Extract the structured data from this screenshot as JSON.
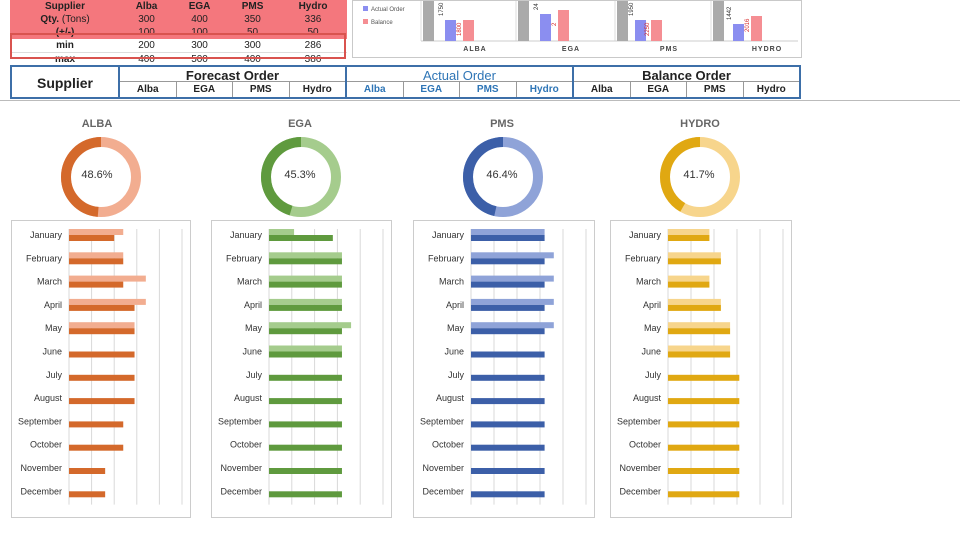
{
  "summary_table": {
    "header": [
      "Supplier",
      "Alba",
      "EGA",
      "PMS",
      "Hydro"
    ],
    "rows": [
      {
        "label": "Qty.",
        "unit": "(Tons)",
        "values": [
          "300",
          "400",
          "350",
          "336"
        ]
      },
      {
        "label": "(+/-)",
        "unit": "",
        "values": [
          "100",
          "100",
          "50",
          "50"
        ]
      },
      {
        "label": "min",
        "unit": "",
        "values": [
          "200",
          "300",
          "300",
          "286"
        ]
      },
      {
        "label": "max",
        "unit": "",
        "values": [
          "400",
          "500",
          "400",
          "386"
        ]
      }
    ]
  },
  "top_chart": {
    "legend": [
      "Actual Order",
      "Balance"
    ],
    "categories": [
      "ALBA",
      "EGA",
      "PMS",
      "HYDRO"
    ],
    "actual_labels": [
      "1750",
      "24",
      "1950",
      "1442"
    ],
    "balance_labels": [
      "1800",
      "2",
      "2250",
      "2016"
    ]
  },
  "header": {
    "supplier_label": "Supplier",
    "sections": [
      {
        "title": "Forecast Order",
        "subs": [
          "Alba",
          "EGA",
          "PMS",
          "Hydro"
        ]
      },
      {
        "title": "Actual Order",
        "subs": [
          "Alba",
          "EGA",
          "PMS",
          "Hydro"
        ]
      },
      {
        "title": "Balance Order",
        "subs": [
          "Alba",
          "EGA",
          "PMS",
          "Hydro"
        ]
      }
    ]
  },
  "colors": {
    "alba": {
      "dark": "#d4692b",
      "light": "#f2ad90"
    },
    "ega": {
      "dark": "#5f9a3e",
      "light": "#a5cc8d"
    },
    "pms": {
      "dark": "#3c5fa8",
      "light": "#8fa3d8"
    },
    "hydro": {
      "dark": "#e0a812",
      "light": "#f7d58c"
    },
    "actual_title": "#2e75b6",
    "red_row": "#f4777d",
    "top_actual": "#8b8ef0",
    "top_balance": "#f58e93",
    "top_grey": "#aaaaaa"
  },
  "chart_data": [
    {
      "type": "pie",
      "title": "ALBA",
      "values": [
        48.6,
        51.4
      ],
      "center_label": "48.6%"
    },
    {
      "type": "pie",
      "title": "EGA",
      "values": [
        45.3,
        54.7
      ],
      "center_label": "45.3%"
    },
    {
      "type": "pie",
      "title": "PMS",
      "values": [
        46.4,
        53.6
      ],
      "center_label": "46.4%"
    },
    {
      "type": "pie",
      "title": "HYDRO",
      "values": [
        41.7,
        58.3
      ],
      "center_label": "41.7%"
    },
    {
      "type": "bar",
      "orientation": "horizontal",
      "categories": [
        "January",
        "February",
        "March",
        "April",
        "May",
        "June",
        "July",
        "August",
        "September",
        "October",
        "November",
        "December"
      ],
      "xlim": [
        0,
        5
      ],
      "grid": true,
      "series": [
        {
          "values": [
            2.4,
            2.4,
            3.4,
            3.4,
            2.9,
            0,
            0,
            0,
            0,
            0,
            0,
            0
          ]
        },
        {
          "values": [
            2.0,
            2.4,
            2.4,
            2.9,
            2.9,
            2.9,
            2.9,
            2.9,
            2.4,
            2.4,
            1.6,
            1.6
          ]
        }
      ]
    },
    {
      "type": "bar",
      "orientation": "horizontal",
      "categories": [
        "January",
        "February",
        "March",
        "April",
        "May",
        "June",
        "July",
        "August",
        "September",
        "October",
        "November",
        "December"
      ],
      "xlim": [
        0,
        5
      ],
      "grid": true,
      "series": [
        {
          "values": [
            1.1,
            3.2,
            3.2,
            3.2,
            3.6,
            3.2,
            0,
            0,
            0,
            0,
            0,
            0
          ]
        },
        {
          "values": [
            2.8,
            3.2,
            3.2,
            3.2,
            3.2,
            3.2,
            3.2,
            3.2,
            3.2,
            3.2,
            3.2,
            3.2
          ]
        }
      ]
    },
    {
      "type": "bar",
      "orientation": "horizontal",
      "categories": [
        "January",
        "February",
        "March",
        "April",
        "May",
        "June",
        "July",
        "August",
        "September",
        "October",
        "November",
        "December"
      ],
      "xlim": [
        0,
        5
      ],
      "grid": true,
      "series": [
        {
          "values": [
            3.2,
            3.6,
            3.6,
            3.6,
            3.6,
            0,
            0,
            0,
            0,
            0,
            0,
            0
          ]
        },
        {
          "values": [
            3.2,
            3.2,
            3.2,
            3.2,
            3.2,
            3.2,
            3.2,
            3.2,
            3.2,
            3.2,
            3.2,
            3.2
          ]
        }
      ]
    },
    {
      "type": "bar",
      "orientation": "horizontal",
      "categories": [
        "January",
        "February",
        "March",
        "April",
        "May",
        "June",
        "July",
        "August",
        "September",
        "October",
        "November",
        "December"
      ],
      "xlim": [
        0,
        5
      ],
      "grid": true,
      "series": [
        {
          "values": [
            1.8,
            2.3,
            1.8,
            2.3,
            2.7,
            2.7,
            0,
            0,
            0,
            0,
            0,
            0
          ]
        },
        {
          "values": [
            1.8,
            2.3,
            1.8,
            2.3,
            2.7,
            2.7,
            3.1,
            3.1,
            3.1,
            3.1,
            3.1,
            3.1
          ]
        }
      ]
    }
  ]
}
